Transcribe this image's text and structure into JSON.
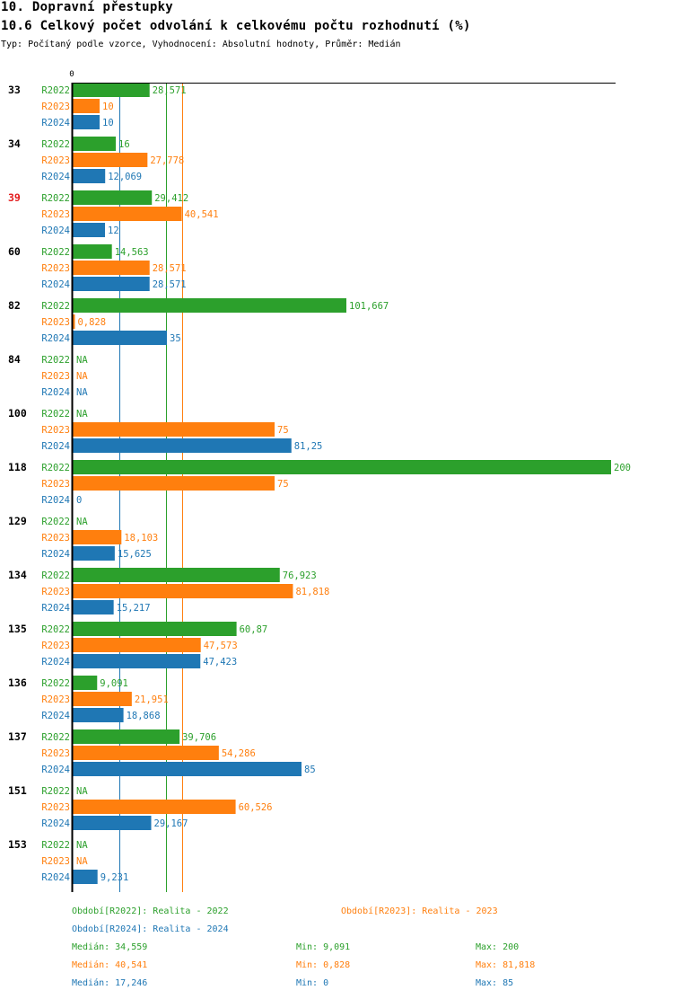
{
  "header": {
    "section_title": "10. Dopravní přestupky",
    "chart_title": "10.6 Celkový počet odvolání k celkovému počtu rozhodnutí (%)",
    "subtitle": "Typ: Počítaný podle vzorce, Vyhodnocení: Absolutní hodnoty, Průměr: Medián"
  },
  "colors": {
    "R2022": "#2ca02c",
    "R2023": "#ff7f0e",
    "R2024": "#1f77b4",
    "highlight_group": "#e31a1c",
    "axis": "#000000"
  },
  "chart_data": {
    "type": "bar",
    "orientation": "horizontal",
    "title": "10.6 Celkový počet odvolání k celkovému počtu rozhodnutí (%)",
    "xlabel": "",
    "ylabel": "",
    "x_tick_labels": [
      "0"
    ],
    "xlim": [
      0,
      200
    ],
    "grid": false,
    "legend_placement": "bottom",
    "series_names": [
      "R2022",
      "R2023",
      "R2024"
    ],
    "categories": [
      "33",
      "34",
      "39",
      "60",
      "82",
      "84",
      "100",
      "118",
      "129",
      "134",
      "135",
      "136",
      "137",
      "151",
      "153"
    ],
    "highlighted_category": "39",
    "series": [
      {
        "name": "R2022",
        "values": [
          28.571,
          16,
          29.412,
          14.563,
          101.667,
          null,
          null,
          200,
          null,
          76.923,
          60.87,
          9.091,
          39.706,
          null,
          null
        ],
        "labels": [
          "28,571",
          "16",
          "29,412",
          "14,563",
          "101,667",
          "NA",
          "NA",
          "200",
          "NA",
          "76,923",
          "60,87",
          "9,091",
          "39,706",
          "NA",
          "NA"
        ]
      },
      {
        "name": "R2023",
        "values": [
          10,
          27.778,
          40.541,
          28.571,
          0.828,
          null,
          75,
          75,
          18.103,
          81.818,
          47.573,
          21.951,
          54.286,
          60.526,
          null
        ],
        "labels": [
          "10",
          "27,778",
          "40,541",
          "28,571",
          "0,828",
          "NA",
          "75",
          "75",
          "18,103",
          "81,818",
          "47,573",
          "21,951",
          "54,286",
          "60,526",
          "NA"
        ]
      },
      {
        "name": "R2024",
        "values": [
          10,
          12.069,
          12,
          28.571,
          35,
          null,
          81.25,
          0,
          15.625,
          15.217,
          47.423,
          18.868,
          85,
          29.167,
          9.231
        ],
        "labels": [
          "10",
          "12,069",
          "12",
          "28,571",
          "35",
          "NA",
          "81,25",
          "0",
          "15,625",
          "15,217",
          "47,423",
          "18,868",
          "85",
          "29,167",
          "9,231"
        ]
      }
    ],
    "medians": {
      "R2022": 34.559,
      "R2023": 40.541,
      "R2024": 17.246
    }
  },
  "legend": {
    "periods": [
      {
        "key": "R2022",
        "text": "Období[R2022]: Realita - 2022"
      },
      {
        "key": "R2023",
        "text": "Období[R2023]: Realita - 2023"
      },
      {
        "key": "R2024",
        "text": "Období[R2024]: Realita - 2024"
      }
    ],
    "stats": [
      {
        "key": "R2022",
        "median": "Medián: 34,559",
        "min": "Min: 9,091",
        "max": "Max: 200"
      },
      {
        "key": "R2023",
        "median": "Medián: 40,541",
        "min": "Min: 0,828",
        "max": "Max: 81,818"
      },
      {
        "key": "R2024",
        "median": "Medián: 17,246",
        "min": "Min: 0",
        "max": "Max: 85"
      }
    ]
  }
}
